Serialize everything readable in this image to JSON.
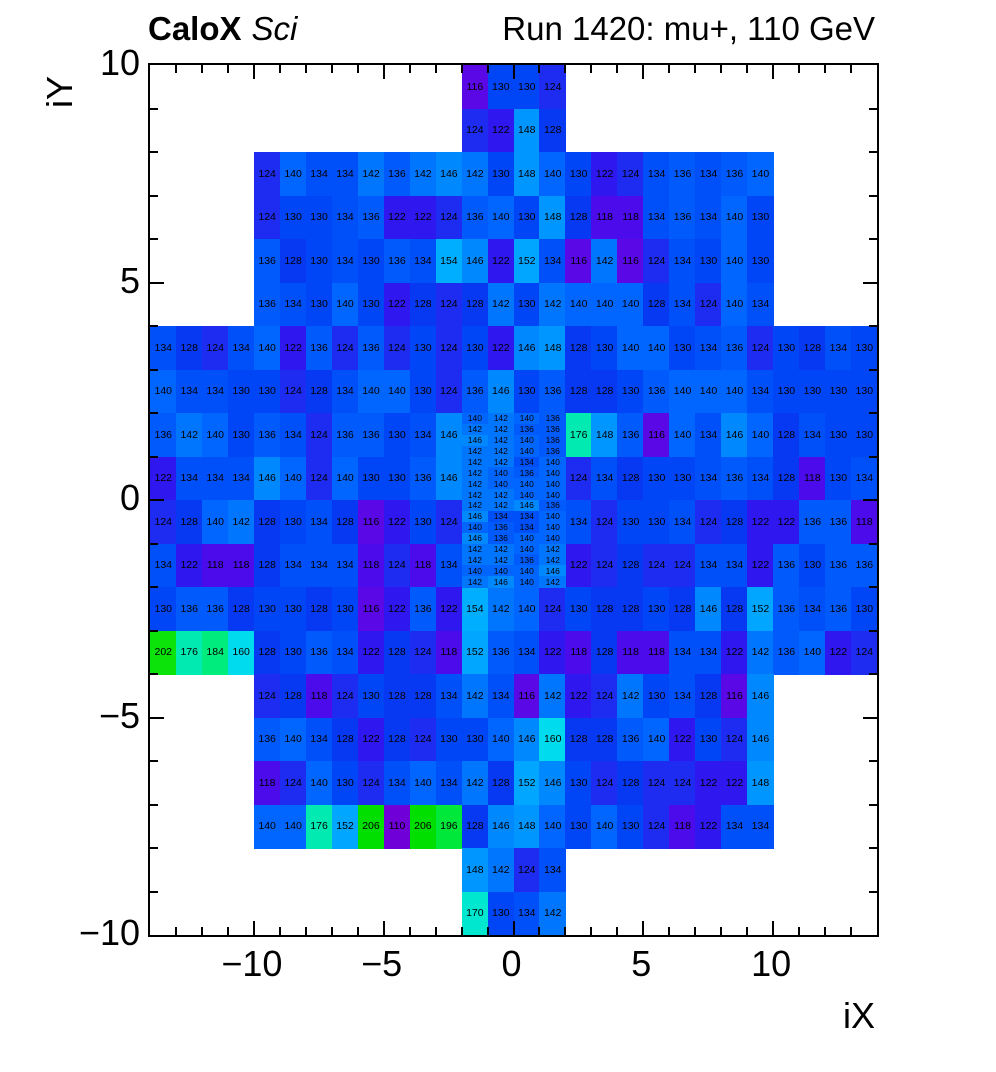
{
  "chart_data": {
    "type": "heatmap",
    "title": {
      "experiment": "CaloX",
      "detector": "Sci",
      "run_info": "Run 1420: mu+, 110 GeV"
    },
    "xlabel": "iX",
    "ylabel": "iY",
    "x_range": [
      -14,
      14
    ],
    "y_range": [
      -10,
      10
    ],
    "x_ticks": [
      {
        "value": -10,
        "label": "−10"
      },
      {
        "value": -5,
        "label": "−5"
      },
      {
        "value": 0,
        "label": "0"
      },
      {
        "value": 5,
        "label": "5"
      },
      {
        "value": 10,
        "label": "10"
      }
    ],
    "y_ticks": [
      {
        "value": 10,
        "label": "10"
      },
      {
        "value": 5,
        "label": "5"
      },
      {
        "value": 0,
        "label": "0"
      },
      {
        "value": -5,
        "label": "−5"
      },
      {
        "value": -10,
        "label": "−10"
      }
    ],
    "z_min": 110,
    "z_max": 206,
    "palette": [
      [
        110,
        "#7000D8"
      ],
      [
        116,
        "#5A08E6"
      ],
      [
        118,
        "#4B0BEB"
      ],
      [
        122,
        "#2E17EF"
      ],
      [
        124,
        "#1E2BF0"
      ],
      [
        128,
        "#0839F2"
      ],
      [
        130,
        "#0045F6"
      ],
      [
        134,
        "#0050FA"
      ],
      [
        136,
        "#005AFC"
      ],
      [
        140,
        "#0066FF"
      ],
      [
        142,
        "#0076FF"
      ],
      [
        146,
        "#0088FF"
      ],
      [
        148,
        "#0096FF"
      ],
      [
        152,
        "#00A6FF"
      ],
      [
        154,
        "#00AEFF"
      ],
      [
        160,
        "#00DCEE"
      ],
      [
        170,
        "#00E7D0"
      ],
      [
        176,
        "#00EAB2"
      ],
      [
        184,
        "#00EC7C"
      ],
      [
        196,
        "#00E93A"
      ],
      [
        202,
        "#0BE30B"
      ],
      [
        206,
        "#00DF00"
      ]
    ],
    "rows": [
      {
        "iY": 9,
        "iX_start": -2,
        "values": [
          116,
          130,
          130,
          124
        ]
      },
      {
        "iY": 8,
        "iX_start": -2,
        "values": [
          124,
          122,
          148,
          128
        ]
      },
      {
        "iY": 7,
        "iX_start": -10,
        "values": [
          124,
          140,
          134,
          134,
          142,
          136,
          142,
          146,
          142,
          130,
          148,
          140,
          130,
          122,
          124,
          134,
          136,
          134,
          136,
          140
        ]
      },
      {
        "iY": 6,
        "iX_start": -10,
        "values": [
          124,
          130,
          130,
          134,
          136,
          122,
          122,
          124,
          136,
          140,
          130,
          148,
          128,
          118,
          118,
          134,
          136,
          134,
          140,
          130
        ]
      },
      {
        "iY": 5,
        "iX_start": -10,
        "values": [
          136,
          128,
          130,
          134,
          130,
          136,
          134,
          154,
          146,
          122,
          152,
          134,
          116,
          142,
          116,
          124,
          134,
          130,
          140,
          130
        ]
      },
      {
        "iY": 4,
        "iX_start": -10,
        "values": [
          136,
          134,
          130,
          140,
          130,
          122,
          128,
          124,
          128,
          142,
          130,
          142,
          140,
          140,
          140,
          128,
          134,
          124,
          140,
          134
        ]
      },
      {
        "iY": 3,
        "iX_start": -14,
        "values": [
          134,
          128,
          124,
          134,
          140,
          122,
          136,
          124,
          136,
          124,
          130,
          124,
          130,
          122,
          146,
          148,
          128,
          130,
          140,
          140,
          130,
          134,
          136,
          124,
          130,
          128,
          134,
          130
        ]
      },
      {
        "iY": 2,
        "iX_start": -14,
        "values": [
          140,
          134,
          134,
          130,
          130,
          124,
          128,
          134,
          140,
          140,
          130,
          124,
          136,
          146,
          130,
          136,
          128,
          128,
          130,
          136,
          140,
          140,
          140,
          134,
          130,
          130,
          130,
          130
        ]
      },
      {
        "iY": 1,
        "iX_start": -14,
        "values": [
          136,
          142,
          140,
          130,
          136,
          134,
          124,
          136,
          136,
          130,
          134,
          146
        ]
      },
      {
        "iY": 1,
        "iX_start": 2,
        "values": [
          176,
          148,
          136,
          116,
          140,
          134,
          146,
          140,
          128,
          134,
          130,
          130
        ]
      },
      {
        "iY": 0,
        "iX_start": -14,
        "values": [
          122,
          134,
          134,
          134,
          146,
          140,
          124,
          140,
          130,
          130,
          136,
          146
        ]
      },
      {
        "iY": 0,
        "iX_start": 2,
        "values": [
          124,
          134,
          128,
          130,
          130,
          134,
          136,
          134,
          128,
          118,
          130,
          134
        ]
      },
      {
        "iY": -1,
        "iX_start": -14,
        "values": [
          124,
          128,
          140,
          142,
          128,
          130,
          134,
          128,
          116,
          122,
          130,
          124
        ]
      },
      {
        "iY": -1,
        "iX_start": 2,
        "values": [
          134,
          124,
          130,
          130,
          134,
          124,
          128,
          122,
          122,
          136,
          136,
          118
        ]
      },
      {
        "iY": -2,
        "iX_start": -14,
        "values": [
          134,
          122,
          118,
          118,
          128,
          134,
          134,
          134,
          118,
          124,
          118,
          134
        ]
      },
      {
        "iY": -2,
        "iX_start": 2,
        "values": [
          122,
          124,
          128,
          124,
          124,
          134,
          134,
          122,
          136,
          130,
          136,
          136
        ]
      },
      {
        "iY": -3,
        "iX_start": -14,
        "values": [
          130,
          136,
          136,
          128,
          130,
          130,
          128,
          130,
          116,
          122,
          136,
          122,
          154,
          142,
          140,
          124,
          130,
          128,
          128,
          130,
          128,
          146,
          128,
          152,
          136,
          134,
          136,
          130
        ]
      },
      {
        "iY": -4,
        "iX_start": -14,
        "values": [
          202,
          176,
          184,
          160,
          128,
          130,
          136,
          134,
          122,
          128,
          124,
          118,
          152,
          136,
          134,
          122,
          118,
          128,
          118,
          118,
          134,
          134,
          122,
          142,
          136,
          140,
          122,
          124
        ]
      },
      {
        "iY": -5,
        "iX_start": -10,
        "values": [
          124,
          128,
          118,
          124,
          130,
          128,
          128,
          134,
          142,
          134,
          116,
          142,
          122,
          124,
          142,
          130,
          134,
          128,
          116,
          146
        ]
      },
      {
        "iY": -6,
        "iX_start": -10,
        "values": [
          136,
          140,
          134,
          128,
          122,
          128,
          124,
          130,
          130,
          140,
          146,
          160,
          128,
          128,
          136,
          140,
          122,
          130,
          124,
          146
        ]
      },
      {
        "iY": -7,
        "iX_start": -10,
        "values": [
          118,
          124,
          140,
          130,
          124,
          134,
          140,
          134,
          142,
          128,
          152,
          146,
          130,
          124,
          128,
          124,
          124,
          122,
          122,
          148
        ]
      },
      {
        "iY": -8,
        "iX_start": -10,
        "values": [
          140,
          140,
          176,
          152,
          206,
          110,
          206,
          196,
          128,
          146,
          148,
          140,
          130,
          140,
          130,
          124,
          118,
          122,
          134,
          134
        ]
      },
      {
        "iY": -9,
        "iX_start": -2,
        "values": [
          148,
          142,
          124,
          134
        ]
      },
      {
        "iY": -10,
        "iX_start": -2,
        "values": [
          170,
          130,
          134,
          142
        ]
      }
    ],
    "fine_region": {
      "iX_start": -2,
      "cols": 4,
      "row_height": 0.25,
      "rows": [
        {
          "y": 1.75,
          "values": [
            140,
            142,
            140,
            136
          ]
        },
        {
          "y": 1.5,
          "values": [
            142,
            142,
            136,
            136
          ]
        },
        {
          "y": 1.25,
          "values": [
            146,
            142,
            140,
            136
          ]
        },
        {
          "y": 1.0,
          "values": [
            142,
            142,
            140,
            136
          ]
        },
        {
          "y": 0.75,
          "values": [
            142,
            142,
            134,
            140
          ]
        },
        {
          "y": 0.5,
          "values": [
            142,
            140,
            136,
            140
          ]
        },
        {
          "y": 0.25,
          "values": [
            142,
            140,
            140,
            140
          ]
        },
        {
          "y": 0.0,
          "values": [
            142,
            142,
            140,
            140
          ]
        },
        {
          "y": -0.25,
          "values": [
            142,
            142,
            146,
            136
          ]
        },
        {
          "y": -0.5,
          "values": [
            146,
            134,
            134,
            140
          ]
        },
        {
          "y": -0.75,
          "values": [
            140,
            136,
            134,
            140
          ]
        },
        {
          "y": -1.0,
          "values": [
            146,
            136,
            140,
            140
          ]
        },
        {
          "y": -1.25,
          "values": [
            142,
            142,
            140,
            142
          ]
        },
        {
          "y": -1.5,
          "values": [
            142,
            142,
            136,
            142
          ]
        },
        {
          "y": -1.75,
          "values": [
            140,
            140,
            140,
            146
          ]
        },
        {
          "y": -2.0,
          "values": [
            142,
            146,
            140,
            142
          ]
        }
      ]
    }
  }
}
